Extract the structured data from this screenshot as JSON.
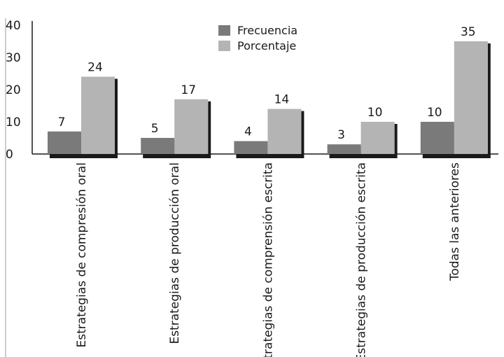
{
  "chart_data": {
    "type": "bar",
    "categories": [
      "Estrategias de compresión oral",
      "Estrategias de producción oral",
      "Estrategias de comprensión escrita",
      "Estrategias de producción escrita",
      "Todas las anteriores"
    ],
    "series": [
      {
        "name": "Frecuencia",
        "values": [
          7,
          5,
          4,
          3,
          10
        ],
        "color": "#7a7a7a"
      },
      {
        "name": "Porcentaje",
        "values": [
          24,
          17,
          14,
          10,
          35
        ],
        "color": "#b4b4b4"
      }
    ],
    "ylim": [
      0,
      40
    ],
    "yticks": [
      0,
      10,
      20,
      30,
      40
    ],
    "grid": false,
    "legend_position": "top-center",
    "data_labels": true,
    "shadow_color": "#1a1a1a",
    "axis_color": "#1a1a1a"
  }
}
